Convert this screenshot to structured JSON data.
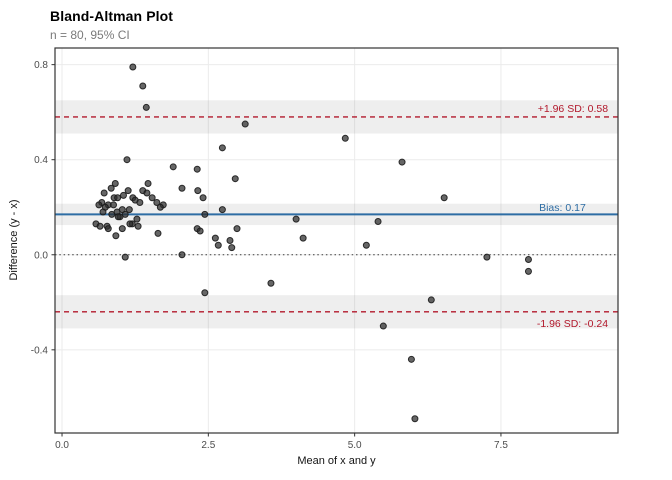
{
  "chart_data": {
    "type": "scatter",
    "title": "Bland-Altman Plot",
    "subtitle": "n = 80, 95% CI",
    "xlabel": "Mean of x and y",
    "ylabel": "Difference (y - x)",
    "xlim": [
      -0.12,
      9.5
    ],
    "ylim": [
      -0.75,
      0.87
    ],
    "n": 80,
    "bias": 0.17,
    "upper_loa": 0.58,
    "lower_loa": -0.24,
    "x_ticks": [
      {
        "value": 0.0,
        "label": "0.0"
      },
      {
        "value": 2.5,
        "label": "2.5"
      },
      {
        "value": 5.0,
        "label": "5.0"
      },
      {
        "value": 7.5,
        "label": "7.5"
      }
    ],
    "y_ticks": [
      {
        "value": -0.4,
        "label": "-0.4"
      },
      {
        "value": 0.0,
        "label": "0.0"
      },
      {
        "value": 0.4,
        "label": "0.4"
      },
      {
        "value": 0.8,
        "label": "0.8"
      }
    ],
    "bands": [
      {
        "name": "upper-loa-ci",
        "from": 0.51,
        "to": 0.65
      },
      {
        "name": "bias-ci",
        "from": 0.125,
        "to": 0.215
      },
      {
        "name": "lower-loa-ci",
        "from": -0.31,
        "to": -0.17
      }
    ],
    "lines": [
      {
        "name": "zero-line",
        "y": 0.0,
        "style": "dotted",
        "color": "#3c3c3c",
        "width": 1
      },
      {
        "name": "upper-loa-line",
        "y": 0.58,
        "style": "dashed",
        "color": "#b2182b",
        "width": 1.3
      },
      {
        "name": "lower-loa-line",
        "y": -0.24,
        "style": "dashed",
        "color": "#b2182b",
        "width": 1.3
      },
      {
        "name": "bias-line",
        "y": 0.17,
        "style": "solid",
        "color": "#2e6da4",
        "width": 2
      }
    ],
    "annotations": [
      {
        "text": "+1.96 SD: 0.58",
        "x": 9.33,
        "y": 0.6,
        "anchor": "end",
        "color": "#b2182b"
      },
      {
        "text": "Bias: 0.17",
        "x": 8.95,
        "y": 0.185,
        "anchor": "end",
        "color": "#2e6da4"
      },
      {
        "text": "-1.96 SD: -0.24",
        "x": 9.33,
        "y": -0.305,
        "anchor": "end",
        "color": "#b2182b"
      }
    ],
    "points": [
      [
        1.21,
        0.79
      ],
      [
        1.38,
        0.71
      ],
      [
        1.44,
        0.62
      ],
      [
        3.13,
        0.55
      ],
      [
        4.84,
        0.49
      ],
      [
        2.74,
        0.45
      ],
      [
        1.11,
        0.4
      ],
      [
        5.81,
        0.39
      ],
      [
        1.9,
        0.37
      ],
      [
        2.31,
        0.36
      ],
      [
        2.96,
        0.32
      ],
      [
        0.91,
        0.3
      ],
      [
        1.47,
        0.3
      ],
      [
        0.84,
        0.28
      ],
      [
        2.05,
        0.28
      ],
      [
        1.13,
        0.27
      ],
      [
        1.38,
        0.27
      ],
      [
        2.32,
        0.27
      ],
      [
        1.45,
        0.26
      ],
      [
        0.72,
        0.26
      ],
      [
        1.05,
        0.25
      ],
      [
        0.89,
        0.24
      ],
      [
        1.21,
        0.24
      ],
      [
        1.54,
        0.24
      ],
      [
        2.41,
        0.24
      ],
      [
        6.53,
        0.24
      ],
      [
        0.95,
        0.24
      ],
      [
        1.25,
        0.23
      ],
      [
        0.68,
        0.22
      ],
      [
        1.33,
        0.22
      ],
      [
        1.62,
        0.22
      ],
      [
        0.79,
        0.21
      ],
      [
        1.73,
        0.21
      ],
      [
        0.63,
        0.21
      ],
      [
        0.88,
        0.21
      ],
      [
        0.74,
        0.2
      ],
      [
        1.68,
        0.2
      ],
      [
        1.03,
        0.19
      ],
      [
        2.74,
        0.19
      ],
      [
        1.15,
        0.19
      ],
      [
        0.94,
        0.18
      ],
      [
        0.7,
        0.18
      ],
      [
        0.85,
        0.17
      ],
      [
        2.44,
        0.17
      ],
      [
        1.08,
        0.17
      ],
      [
        0.99,
        0.16
      ],
      [
        0.96,
        0.16
      ],
      [
        4.0,
        0.15
      ],
      [
        5.4,
        0.14
      ],
      [
        1.28,
        0.15
      ],
      [
        0.58,
        0.13
      ],
      [
        1.2,
        0.13
      ],
      [
        1.16,
        0.13
      ],
      [
        0.65,
        0.12
      ],
      [
        0.77,
        0.12
      ],
      [
        1.3,
        0.12
      ],
      [
        0.79,
        0.11
      ],
      [
        1.03,
        0.11
      ],
      [
        2.31,
        0.11
      ],
      [
        2.99,
        0.11
      ],
      [
        2.36,
        0.1
      ],
      [
        1.64,
        0.09
      ],
      [
        0.92,
        0.08
      ],
      [
        2.62,
        0.07
      ],
      [
        4.12,
        0.07
      ],
      [
        2.87,
        0.06
      ],
      [
        2.67,
        0.04
      ],
      [
        5.2,
        0.04
      ],
      [
        2.9,
        0.03
      ],
      [
        2.05,
        0.0
      ],
      [
        1.08,
        -0.01
      ],
      [
        7.26,
        -0.01
      ],
      [
        7.97,
        -0.02
      ],
      [
        7.97,
        -0.07
      ],
      [
        3.57,
        -0.12
      ],
      [
        2.44,
        -0.16
      ],
      [
        6.31,
        -0.19
      ],
      [
        5.49,
        -0.3
      ],
      [
        5.97,
        -0.44
      ],
      [
        6.03,
        -0.69
      ]
    ],
    "style": {
      "panel_border_color": "#333333",
      "grid_color": "#ebebeb",
      "band_fill": "#000000",
      "band_opacity": 0.065,
      "point_radius": 3,
      "point_fill": "#2b2b2b",
      "point_fill_opacity": 0.72,
      "point_stroke": "#1a1a1a",
      "tick_color": "#333333",
      "tick_label_color": "#4d4d4d",
      "annotation_font_size": 10.5,
      "tick_font_size": 10
    }
  }
}
